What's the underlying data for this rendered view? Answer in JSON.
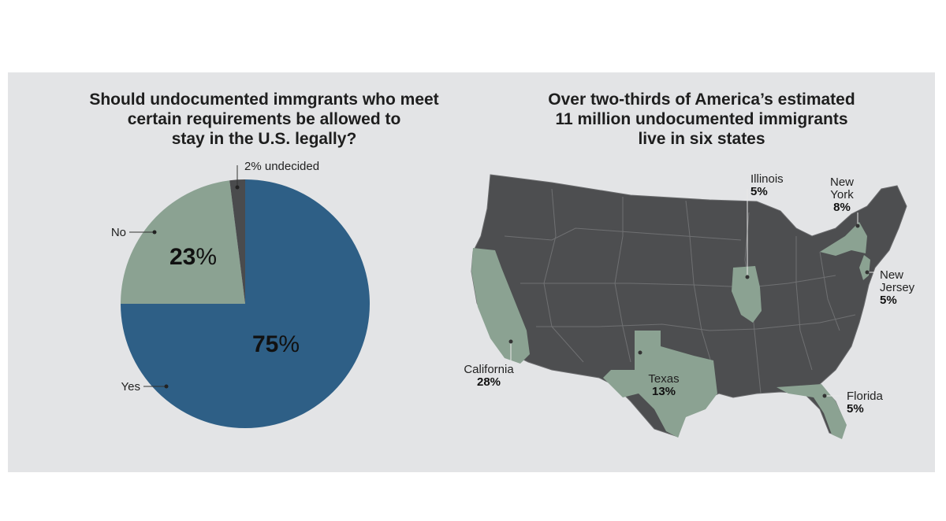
{
  "left_chart": {
    "title_lines": [
      "Should undocumented immgrants who meet",
      "certain requirements be allowed to",
      "stay in the U.S. legally?"
    ]
  },
  "right_chart": {
    "title_lines": [
      "Over two-thirds of America’s estimated",
      "11 million undocumented immigrants",
      "live in six states"
    ]
  },
  "colors": {
    "yes": "#2e5f86",
    "no": "#8ba292",
    "undecided": "#4a4b4d",
    "map_base": "#4d4e50",
    "map_highlight": "#8ba292",
    "background": "#e3e4e6"
  },
  "chart_data": [
    {
      "type": "pie",
      "title": "Should undocumented immgrants who meet certain requirements be allowed to stay in the U.S. legally?",
      "slices": [
        {
          "label": "Yes",
          "value": 75,
          "display": "75%"
        },
        {
          "label": "No",
          "value": 23,
          "display": "23%"
        },
        {
          "label": "2% undecided",
          "value": 2,
          "display": ""
        }
      ]
    },
    {
      "type": "map",
      "title": "Over two-thirds of America’s estimated 11 million undocumented immigrants live in six states",
      "regions": [
        {
          "name_lines": [
            "California"
          ],
          "value": 28,
          "display": "28%"
        },
        {
          "name_lines": [
            "Texas"
          ],
          "value": 13,
          "display": "13%"
        },
        {
          "name_lines": [
            "New",
            "York"
          ],
          "value": 8,
          "display": "8%"
        },
        {
          "name_lines": [
            "Illinois"
          ],
          "value": 5,
          "display": "5%"
        },
        {
          "name_lines": [
            "New",
            "Jersey"
          ],
          "value": 5,
          "display": "5%"
        },
        {
          "name_lines": [
            "Florida"
          ],
          "value": 5,
          "display": "5%"
        }
      ]
    }
  ]
}
